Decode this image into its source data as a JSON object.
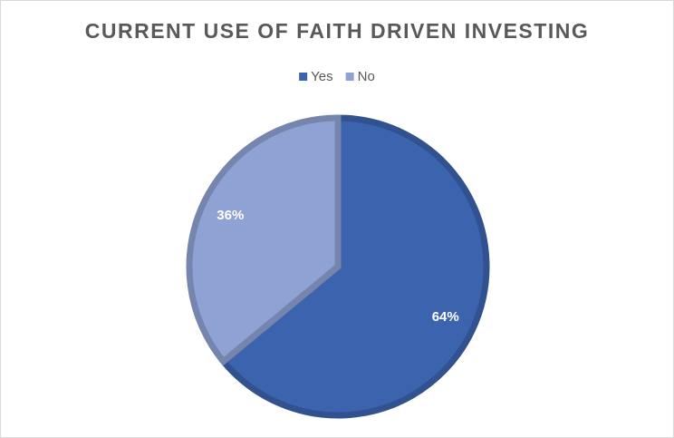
{
  "chart_data": {
    "type": "pie",
    "title": "CURRENT USE OF FAITH DRIVEN INVESTING",
    "categories": [
      "Yes",
      "No"
    ],
    "values": [
      64,
      36
    ],
    "value_labels": [
      "64%",
      "36%"
    ],
    "colors": [
      "#3c64ae",
      "#8fa2d4"
    ],
    "legend": "top"
  }
}
